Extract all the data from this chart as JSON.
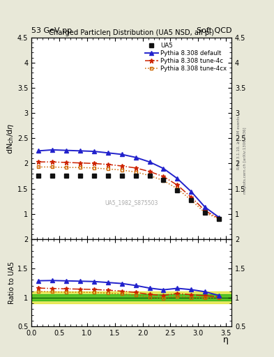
{
  "title_top_left": "53 GeV pp",
  "title_top_right": "Soft QCD",
  "plot_title": "Charged Particleη Distribution (UA5 NSD, all pₜ)",
  "ylabel_main": "dN$_{ch}$/d$\\eta$",
  "ylabel_ratio": "Ratio to UA5",
  "xlabel": "η",
  "right_label1": "Rivet 3.1.10, ≥ 3.4M events",
  "right_label2": "mcplots.cern.ch [arXiv:1306.3436]",
  "watermark": "UA5_1982_S875503",
  "ylim_main": [
    0.5,
    4.5
  ],
  "ylim_ratio": [
    0.5,
    2.0
  ],
  "yticks_main": [
    0.5,
    1.0,
    1.5,
    2.0,
    2.5,
    3.0,
    3.5,
    4.0,
    4.5
  ],
  "yticks_ratio": [
    0.5,
    1.0,
    1.5,
    2.0
  ],
  "xlim": [
    0,
    3.6
  ],
  "ua5_eta": [
    0.125,
    0.375,
    0.625,
    0.875,
    1.125,
    1.375,
    1.625,
    1.875,
    2.125,
    2.375,
    2.625,
    2.875,
    3.125,
    3.375
  ],
  "ua5_vals": [
    1.75,
    1.76,
    1.76,
    1.76,
    1.76,
    1.76,
    1.76,
    1.76,
    1.75,
    1.68,
    1.47,
    1.27,
    1.03,
    0.9
  ],
  "ua5_err": [
    0.04,
    0.04,
    0.04,
    0.04,
    0.04,
    0.04,
    0.04,
    0.04,
    0.04,
    0.04,
    0.04,
    0.04,
    0.04,
    0.04
  ],
  "py_default_eta": [
    0.125,
    0.375,
    0.625,
    0.875,
    1.125,
    1.375,
    1.625,
    1.875,
    2.125,
    2.375,
    2.625,
    2.875,
    3.125,
    3.375
  ],
  "py_default_vals": [
    2.25,
    2.27,
    2.26,
    2.25,
    2.24,
    2.21,
    2.18,
    2.12,
    2.03,
    1.9,
    1.7,
    1.44,
    1.13,
    0.93
  ],
  "py_tune4c_eta": [
    0.125,
    0.375,
    0.625,
    0.875,
    1.125,
    1.375,
    1.625,
    1.875,
    2.125,
    2.375,
    2.625,
    2.875,
    3.125,
    3.375
  ],
  "py_tune4c_vals": [
    2.03,
    2.03,
    2.02,
    2.01,
    2.0,
    1.98,
    1.95,
    1.91,
    1.84,
    1.74,
    1.57,
    1.33,
    1.06,
    0.91
  ],
  "py_tune4cx_eta": [
    0.125,
    0.375,
    0.625,
    0.875,
    1.125,
    1.375,
    1.625,
    1.875,
    2.125,
    2.375,
    2.625,
    2.875,
    3.125,
    3.375
  ],
  "py_tune4cx_vals": [
    1.93,
    1.93,
    1.92,
    1.92,
    1.91,
    1.89,
    1.87,
    1.83,
    1.76,
    1.66,
    1.5,
    1.27,
    1.02,
    0.9
  ],
  "color_ua5": "#111111",
  "color_default": "#2222cc",
  "color_tune4c": "#cc2200",
  "color_tune4cx": "#cc6600",
  "bg_color": "#ffffff",
  "outer_bg": "#e8e8d8",
  "ratio_band_yellow": "#dddd00",
  "ratio_band_green": "#00aa00"
}
